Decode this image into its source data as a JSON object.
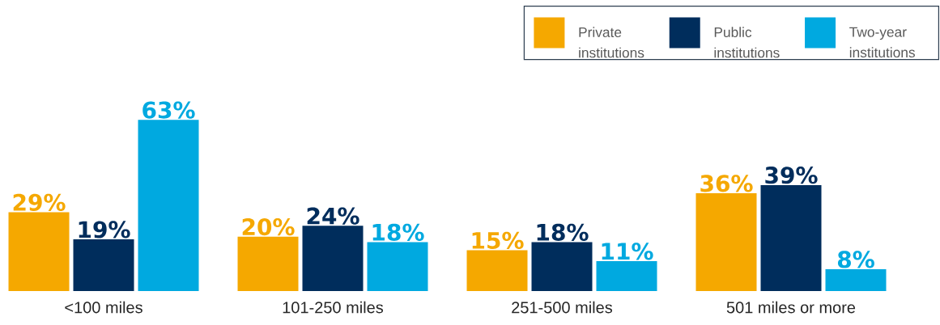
{
  "chart_data": {
    "type": "bar",
    "categories": [
      "<100 miles",
      "101-250 miles",
      "251-500 miles",
      "501 miles or more"
    ],
    "series": [
      {
        "name": "Private institutions",
        "color": "#f5a800",
        "values": [
          29,
          20,
          15,
          36
        ],
        "value_labels": [
          "29%",
          "20%",
          "15%",
          "36%"
        ]
      },
      {
        "name": "Public institutions",
        "color": "#002d5c",
        "values": [
          19,
          24,
          18,
          39
        ],
        "value_labels": [
          "19%",
          "24%",
          "18%",
          "39%"
        ]
      },
      {
        "name": "Two-year institutions",
        "color": "#00a9e0",
        "values": [
          63,
          18,
          11,
          8
        ],
        "value_labels": [
          "63%",
          "18%",
          "11%",
          "8%"
        ]
      }
    ],
    "legend": "top right"
  }
}
